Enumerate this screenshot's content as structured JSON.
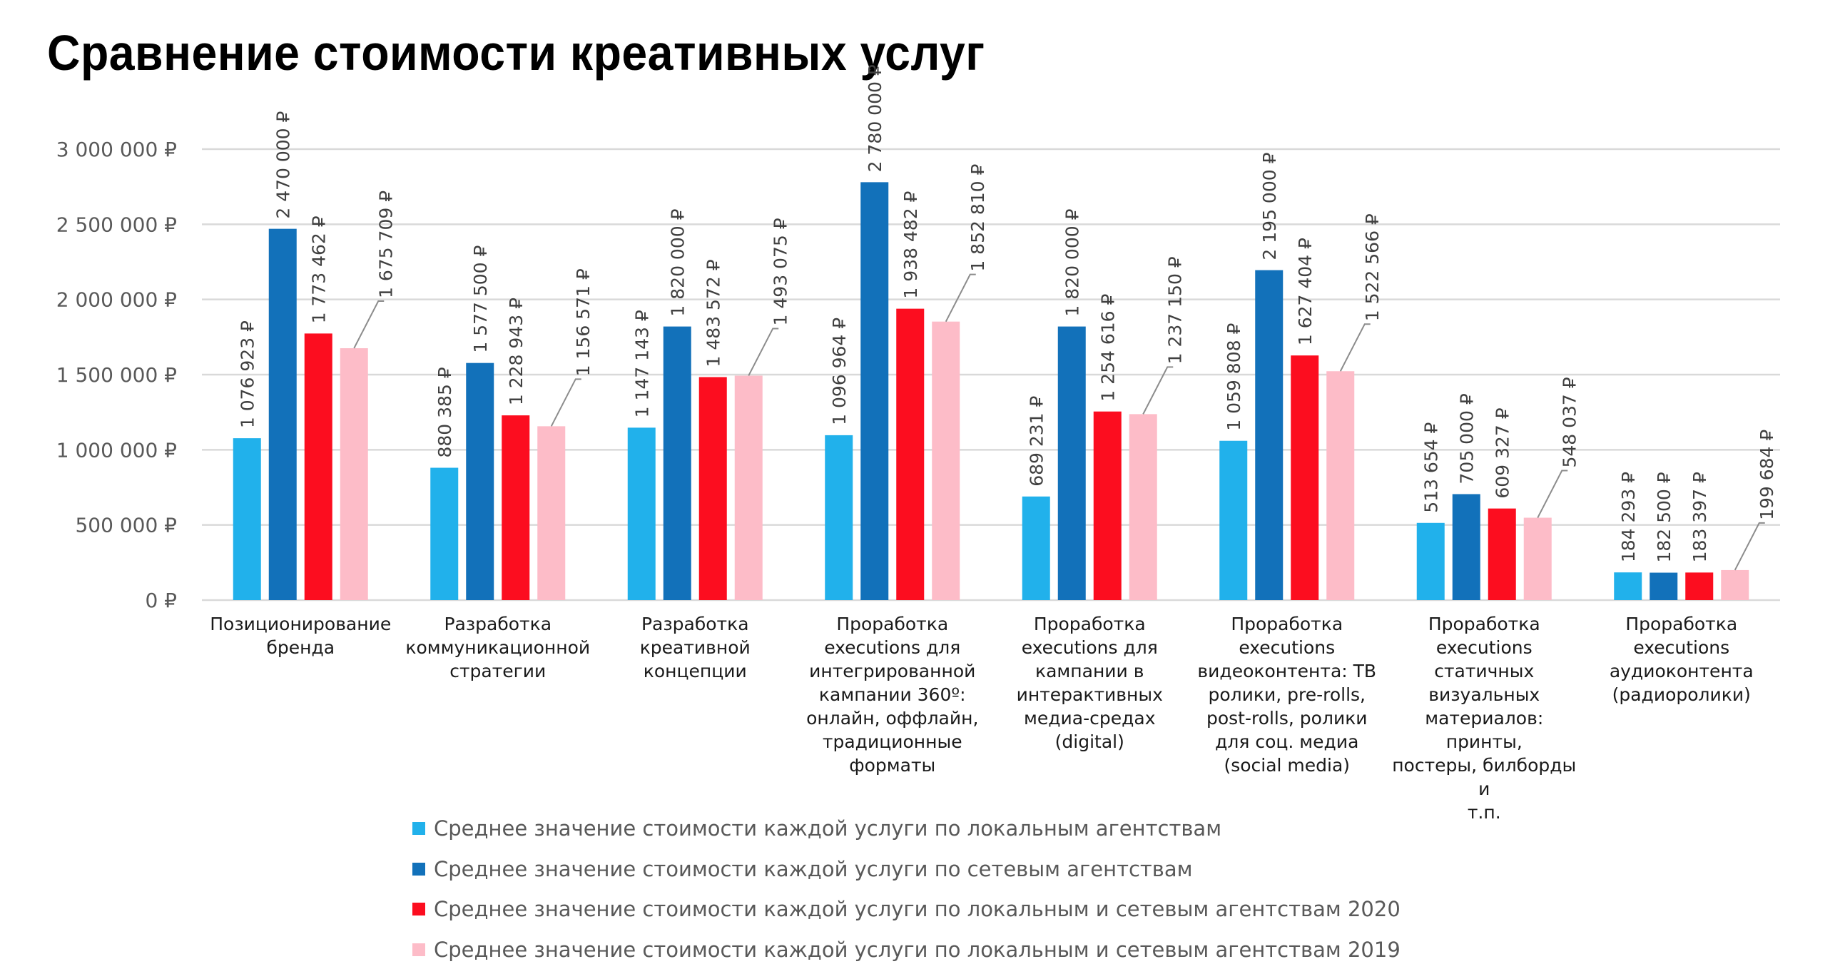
{
  "chart_data": {
    "type": "bar",
    "title": "Сравнение стоимости креативных услуг",
    "xlabel": "",
    "ylabel": "",
    "ylim": [
      0,
      3000000
    ],
    "yticks": [
      0,
      500000,
      1000000,
      1500000,
      2000000,
      2500000,
      3000000
    ],
    "ytick_labels": [
      "0 ₽",
      "500 000 ₽",
      "1 000 000 ₽",
      "1 500 000 ₽",
      "2 000 000 ₽",
      "2 500 000 ₽",
      "3 000 000 ₽"
    ],
    "grid": true,
    "legend_position": "bottom",
    "categories": [
      "Позиционирование\nбренда",
      "Разработка\nкоммуникационной\nстратегии",
      "Разработка\nкреативной\nконцепции",
      "Проработка\nexecutions для\nинтегрированной\nкампании 360º:\nонлайн, оффлайн,\nтрадиционные\nформаты",
      "Проработка\nexecutions для\nкампании в\nинтерактивных\nмедиа-средах\n(digital)",
      "Проработка\nexecutions\nвидеоконтента: ТВ\nролики,  pre-rolls,\npost-rolls, ролики\nдля соц. медиа\n(social media)",
      "Проработка\nexecutions статичных\nвизуальных\nматериалов: принты,\nпостеры, билборды и\nт.п.",
      "Проработка\nexecutions\nаудиоконтента\n(радиоролики)"
    ],
    "series": [
      {
        "name": "Среднее значение стоимости каждой услуги по локальным агентствам",
        "color": "#21B1EB",
        "values": [
          1076923,
          880385,
          1147143,
          1096964,
          689231,
          1059808,
          513654,
          184293
        ],
        "labels": [
          "1 076 923 ₽",
          "880 385 ₽",
          "1 147 143 ₽",
          "1 096 964 ₽",
          "689 231 ₽",
          "1 059 808 ₽",
          "513 654 ₽",
          "184 293 ₽"
        ]
      },
      {
        "name": "Среднее значение стоимости каждой услуги по сетевым агентствам",
        "color": "#1271BA",
        "values": [
          2470000,
          1577500,
          1820000,
          2780000,
          1820000,
          2195000,
          705000,
          182500
        ],
        "labels": [
          "2 470 000 ₽",
          "1 577 500 ₽",
          "1 820 000 ₽",
          "2 780 000 ₽",
          "1 820 000 ₽",
          "2 195 000 ₽",
          "705 000 ₽",
          "182 500 ₽"
        ]
      },
      {
        "name": "Среднее значение стоимости каждой услуги по локальным и сетевым агентствам 2020",
        "color": "#FC0D1F",
        "values": [
          1773462,
          1228943,
          1483572,
          1938482,
          1254616,
          1627404,
          609327,
          183397
        ],
        "labels": [
          "1 773 462 ₽",
          "1 228 943 ₽",
          "1 483 572 ₽",
          "1 938 482 ₽",
          "1 254 616 ₽",
          "1 627 404 ₽",
          "609 327 ₽",
          "183 397 ₽"
        ]
      },
      {
        "name": "Среднее значение стоимости каждой услуги по локальным и сетевым агентствам 2019",
        "color": "#FDBCC8",
        "values": [
          1675709,
          1156571,
          1493075,
          1852810,
          1237150,
          1522566,
          548037,
          199684
        ],
        "labels": [
          "1 675 709 ₽",
          "1 156 571 ₽",
          "1 493 075 ₽",
          "1 852 810 ₽",
          "1 237 150 ₽",
          "1 522 566 ₽",
          "548 037 ₽",
          "199 684 ₽"
        ]
      }
    ]
  }
}
